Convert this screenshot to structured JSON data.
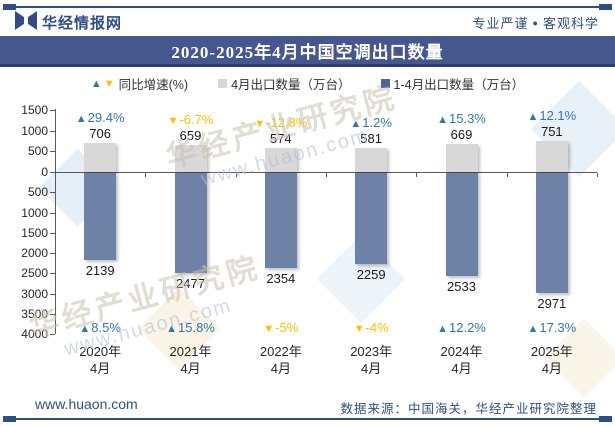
{
  "header": {
    "brand": "华经情报网",
    "slogan_a": "专业严谨",
    "separator": "●",
    "slogan_b": "客观科学"
  },
  "title": "2020-2025年4月中国空调出口数量",
  "icons": {
    "up_triangle": "▲",
    "down_triangle": "▼"
  },
  "legend": [
    {
      "label": "同比增速(%)",
      "marker": "up-down-triangles"
    },
    {
      "label": "4月出口数量（万台）",
      "marker": "gray-square",
      "color": "#D8D8D8"
    },
    {
      "label": "1-4月出口数量（万台）",
      "marker": "navy-square",
      "color": "#4F639B"
    }
  ],
  "chart_data": {
    "type": "bar",
    "title": "2020-2025年4月中国空调出口数量",
    "categories": [
      {
        "year": "2020年",
        "month": "4月"
      },
      {
        "year": "2021年",
        "month": "4月"
      },
      {
        "year": "2022年",
        "month": "4月"
      },
      {
        "year": "2023年",
        "month": "4月"
      },
      {
        "year": "2024年",
        "month": "4月"
      },
      {
        "year": "2025年",
        "month": "4月"
      }
    ],
    "series": [
      {
        "name": "4月出口数量（万台）",
        "values": [
          706,
          659,
          574,
          581,
          669,
          751
        ],
        "direction": "up",
        "axis_max": 1500
      },
      {
        "name": "1-4月出口数量（万台）",
        "values": [
          2139,
          2477,
          2354,
          2259,
          2533,
          2971
        ],
        "direction": "down",
        "axis_max": 4000
      }
    ],
    "growth": {
      "name": "同比增速(%)",
      "april": [
        "29.4%",
        "-6.7%",
        "-12.8%",
        "1.2%",
        "15.3%",
        "12.1%"
      ],
      "cumulative": [
        "8.5%",
        "15.8%",
        "-5%",
        "-4%",
        "12.2%",
        "17.3%"
      ]
    },
    "axis": {
      "tick_step": 500,
      "upper_ticks": [
        1500,
        1000,
        500,
        0
      ],
      "lower_ticks": [
        500,
        1000,
        1500,
        2000,
        2500,
        3000,
        3500,
        4000
      ],
      "lower_direction": "down"
    },
    "legend_position": "top",
    "grid": false
  },
  "colors": {
    "brand_navy": "#2F4E87",
    "title_bg": "#46568E",
    "title_edge": "#2C3C6B",
    "bar_april": "#D8D8D8",
    "bar_cumulative": "#6E82A8",
    "up": "#2E79A9",
    "down": "#FFC000",
    "axis": "#595959",
    "label_text": "#1a1a1a"
  },
  "watermark": {
    "text": "华经产业研究院",
    "url": "www.huaon.com"
  },
  "footer": {
    "site": "www.huaon.com",
    "source": "数据来源：中国海关，华经产业研究院整理"
  }
}
